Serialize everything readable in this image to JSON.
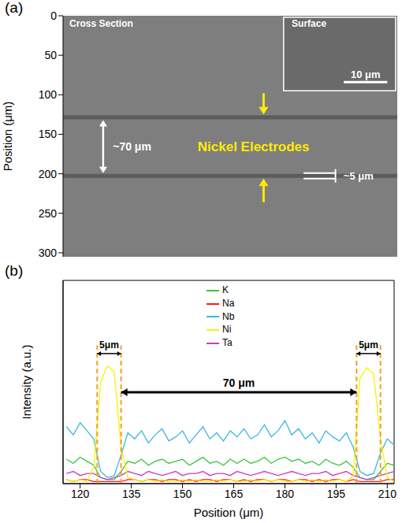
{
  "chart_data": [
    {
      "type": "image",
      "panel": "(a)",
      "ylabel": "Position (μm)",
      "ylim": [
        0,
        305
      ],
      "yticks": [
        0,
        50,
        100,
        150,
        200,
        250,
        300
      ],
      "tick_labels": "y",
      "electrodes": [
        [
          126,
          131
        ],
        [
          200,
          205
        ]
      ],
      "annotations": [
        "Cross Section",
        "Nickel Electrodes",
        "~70 μm",
        "~5 μm"
      ],
      "inset": {
        "title": "Surface",
        "scale_bar": "10 μm"
      }
    },
    {
      "type": "line",
      "panel": "(b)",
      "xlabel": "Position (μm)",
      "ylabel": "Intensity (a.u.)",
      "xlim": [
        115,
        212
      ],
      "xticks": [
        120,
        135,
        150,
        165,
        180,
        195,
        210
      ],
      "ylim": [
        0,
        100
      ],
      "tick_labels": "x",
      "legend": "upper center",
      "x": [
        116,
        118,
        120,
        122,
        124,
        126,
        128,
        130,
        132,
        134,
        136,
        138,
        140,
        142,
        144,
        146,
        148,
        150,
        152,
        154,
        156,
        158,
        160,
        162,
        164,
        166,
        168,
        170,
        172,
        174,
        176,
        178,
        180,
        182,
        184,
        186,
        188,
        190,
        192,
        194,
        196,
        198,
        200,
        202,
        204,
        206,
        208,
        210,
        212
      ],
      "series": [
        {
          "name": "Na",
          "color": "#ff1a1a",
          "values": [
            2,
            1,
            2,
            2,
            1,
            1,
            1,
            1,
            1,
            2,
            2,
            1,
            2,
            2,
            1,
            2,
            2,
            1,
            2,
            1,
            2,
            2,
            1,
            2,
            2,
            1,
            2,
            1,
            2,
            2,
            1,
            2,
            2,
            1,
            2,
            2,
            1,
            2,
            1,
            2,
            2,
            1,
            2,
            1,
            1,
            1,
            1,
            2,
            2
          ]
        },
        {
          "name": "K",
          "color": "#3ac43a",
          "values": [
            12,
            10,
            13,
            11,
            9,
            3,
            2,
            2,
            6,
            11,
            10,
            12,
            9,
            11,
            12,
            10,
            11,
            12,
            9,
            11,
            13,
            10,
            11,
            9,
            12,
            10,
            12,
            10,
            11,
            13,
            10,
            12,
            13,
            11,
            12,
            10,
            11,
            9,
            12,
            10,
            9,
            11,
            8,
            3,
            2,
            2,
            6,
            10,
            9
          ]
        },
        {
          "name": "Nb",
          "color": "#3cb6e3",
          "values": [
            28,
            24,
            30,
            26,
            22,
            6,
            3,
            4,
            14,
            25,
            22,
            26,
            20,
            24,
            27,
            21,
            23,
            26,
            20,
            24,
            28,
            22,
            25,
            21,
            26,
            23,
            27,
            22,
            24,
            29,
            23,
            26,
            31,
            24,
            27,
            22,
            25,
            20,
            26,
            23,
            21,
            25,
            18,
            6,
            4,
            5,
            15,
            22,
            19
          ]
        },
        {
          "name": "Ta",
          "color": "#c83cc8",
          "values": [
            5,
            6,
            4,
            5,
            5,
            3,
            2,
            3,
            4,
            6,
            5,
            4,
            6,
            5,
            4,
            5,
            6,
            4,
            5,
            5,
            6,
            4,
            5,
            5,
            4,
            6,
            5,
            4,
            5,
            6,
            5,
            4,
            5,
            6,
            5,
            4,
            5,
            5,
            6,
            4,
            5,
            6,
            4,
            3,
            2,
            3,
            4,
            5,
            6
          ]
        },
        {
          "name": "Ni",
          "color": "#f5f500",
          "values": [
            2,
            1,
            2,
            1,
            8,
            50,
            58,
            55,
            18,
            3,
            2,
            1,
            2,
            1,
            2,
            1,
            1,
            2,
            1,
            2,
            1,
            1,
            2,
            1,
            2,
            1,
            1,
            2,
            1,
            2,
            1,
            2,
            1,
            1,
            2,
            1,
            2,
            1,
            2,
            1,
            2,
            1,
            4,
            52,
            57,
            54,
            22,
            3,
            1
          ]
        }
      ],
      "annotations": [
        {
          "text": "5μm",
          "x": [
            125,
            132
          ]
        },
        {
          "text": "70 μm",
          "x": [
            132,
            201
          ]
        },
        {
          "text": "5μm",
          "x": [
            201,
            208
          ]
        }
      ]
    }
  ]
}
